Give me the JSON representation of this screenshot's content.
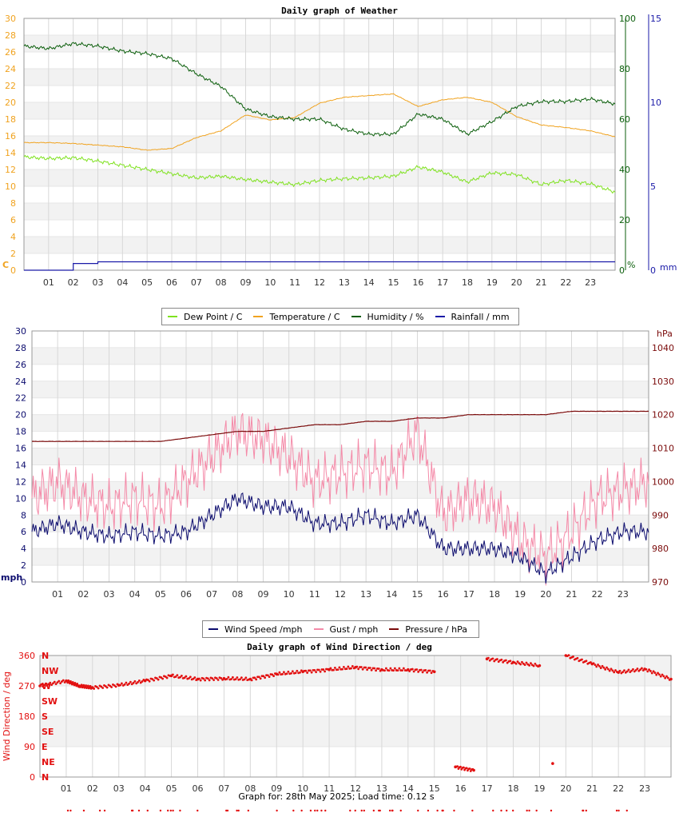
{
  "colors": {
    "dew_point": "#7fe21f",
    "temperature": "#f0a320",
    "humidity": "#0b5e0b",
    "rainfall": "#1a1aa8",
    "wind_speed": "#0c0c6e",
    "gust": "#f48aa8",
    "pressure": "#7a0a0a",
    "direction": "#e21010"
  },
  "hours": [
    "01",
    "02",
    "03",
    "04",
    "05",
    "06",
    "07",
    "08",
    "09",
    "10",
    "11",
    "12",
    "13",
    "14",
    "15",
    "16",
    "17",
    "18",
    "19",
    "20",
    "21",
    "22",
    "23"
  ],
  "chart_data": [
    {
      "type": "line",
      "title": "Daily graph of Weather",
      "x": [
        0,
        1,
        2,
        3,
        4,
        5,
        6,
        7,
        8,
        9,
        10,
        11,
        12,
        13,
        14,
        15,
        16,
        17,
        18,
        19,
        20,
        21,
        22,
        23,
        24
      ],
      "left_axis": {
        "unit_label": "C",
        "ticks": [
          "0",
          "2",
          "4",
          "6",
          "8",
          "10",
          "12",
          "14",
          "16",
          "18",
          "20",
          "22",
          "24",
          "26",
          "28",
          "30"
        ],
        "ylim": [
          0,
          30
        ]
      },
      "right_axis_1": {
        "unit_label": "%",
        "ticks": [
          "0",
          "20",
          "40",
          "60",
          "80",
          "100"
        ],
        "ylim": [
          0,
          100
        ]
      },
      "right_axis_2": {
        "unit_label": "mm",
        "ticks": [
          "0",
          "5",
          "10",
          "15"
        ],
        "ylim": [
          0,
          15
        ]
      },
      "grid": true,
      "legend": "bottom",
      "series": [
        {
          "name": "Dew Point / C",
          "axis": "left",
          "values": [
            13.5,
            13.3,
            13.4,
            13.0,
            12.5,
            12.0,
            11.5,
            11.0,
            11.2,
            10.8,
            10.5,
            10.2,
            10.7,
            10.9,
            11.0,
            11.2,
            12.3,
            11.7,
            10.5,
            11.6,
            11.4,
            10.2,
            10.7,
            10.3,
            9.3
          ]
        },
        {
          "name": "Temperature / C",
          "axis": "left",
          "values": [
            15.2,
            15.2,
            15.1,
            14.9,
            14.7,
            14.3,
            14.5,
            15.8,
            16.6,
            18.5,
            17.9,
            18.2,
            19.9,
            20.6,
            20.8,
            21.0,
            19.5,
            20.3,
            20.6,
            20.0,
            18.3,
            17.3,
            17.0,
            16.6,
            15.9
          ]
        },
        {
          "name": "Humidity / %",
          "axis": "right_1",
          "values": [
            89,
            88,
            90,
            89,
            87,
            86,
            84,
            78,
            73,
            64,
            61,
            60,
            60,
            56,
            54,
            54,
            62,
            60,
            54,
            59,
            65,
            67,
            67,
            68,
            66
          ]
        },
        {
          "name": "Rainfall / mm",
          "axis": "right_2",
          "values": [
            0,
            0,
            0.4,
            0.5,
            0.5,
            0.5,
            0.5,
            0.5,
            0.5,
            0.5,
            0.5,
            0.5,
            0.5,
            0.5,
            0.5,
            0.5,
            0.5,
            0.5,
            0.5,
            0.5,
            0.5,
            0.5,
            0.5,
            0.5,
            0.5
          ]
        }
      ]
    },
    {
      "type": "line",
      "title": "",
      "x": [
        0,
        1,
        2,
        3,
        4,
        5,
        6,
        7,
        8,
        9,
        10,
        11,
        12,
        13,
        14,
        15,
        16,
        17,
        18,
        19,
        20,
        21,
        22,
        23,
        24
      ],
      "left_axis": {
        "unit_label": "mph",
        "ticks": [
          "0",
          "2",
          "4",
          "6",
          "8",
          "10",
          "12",
          "14",
          "16",
          "18",
          "20",
          "22",
          "24",
          "26",
          "28",
          "30"
        ],
        "ylim": [
          0,
          30
        ]
      },
      "right_axis": {
        "unit_label": "hPa",
        "ticks": [
          "970",
          "980",
          "990",
          "1000",
          "1010",
          "1020",
          "1030",
          "1040"
        ],
        "ylim": [
          970,
          1045
        ]
      },
      "grid": true,
      "legend": "bottom",
      "series": [
        {
          "name": "Wind Speed /mph",
          "axis": "left",
          "values": [
            6,
            7,
            6,
            5.5,
            6,
            5.5,
            6,
            8,
            10,
            9,
            9,
            7,
            7,
            8,
            7,
            8,
            4,
            4,
            4,
            3,
            1,
            3,
            5,
            6,
            6
          ]
        },
        {
          "name": "Gust / mph",
          "axis": "left",
          "values": [
            10,
            12,
            10,
            9,
            10,
            9,
            12,
            15,
            18,
            17,
            15,
            12,
            13,
            14,
            13,
            18,
            8,
            10,
            9,
            5,
            3,
            6,
            10,
            11,
            12
          ]
        },
        {
          "name": "Pressure / hPa",
          "axis": "right",
          "values": [
            1012,
            1012,
            1012,
            1012,
            1012,
            1012,
            1013,
            1014,
            1015,
            1015,
            1016,
            1017,
            1017,
            1018,
            1018,
            1019,
            1019,
            1020,
            1020,
            1020,
            1020,
            1021,
            1021,
            1021,
            1021
          ]
        }
      ]
    },
    {
      "type": "scatter",
      "title": "Daily graph of Wind Direction / deg",
      "ylabel": "Wind Direction / deg",
      "y_ticks": [
        "0",
        "90",
        "180",
        "270",
        "360"
      ],
      "compass_labels": [
        "N",
        "NE",
        "E",
        "SE",
        "S",
        "SW",
        "W",
        "NW",
        "N"
      ],
      "ylim": [
        0,
        360
      ],
      "grid": true,
      "series": [
        {
          "name": "Wind Direction",
          "points": [
            [
              0,
              270
            ],
            [
              1,
              285
            ],
            [
              1.5,
              270
            ],
            [
              2,
              265
            ],
            [
              3,
              272
            ],
            [
              4,
              285
            ],
            [
              5,
              300
            ],
            [
              6,
              290
            ],
            [
              7,
              292
            ],
            [
              8,
              290
            ],
            [
              9,
              305
            ],
            [
              10,
              312
            ],
            [
              11,
              318
            ],
            [
              12,
              325
            ],
            [
              13,
              318
            ],
            [
              14,
              318
            ],
            [
              15,
              312
            ],
            [
              15.8,
              30
            ],
            [
              16.5,
              20
            ],
            [
              17,
              350
            ],
            [
              18,
              340
            ],
            [
              19,
              330
            ],
            [
              19.5,
              40
            ],
            [
              20,
              360
            ],
            [
              21,
              335
            ],
            [
              22,
              310
            ],
            [
              23,
              320
            ],
            [
              24,
              290
            ]
          ]
        }
      ]
    }
  ],
  "legend1": {
    "dew_point": "Dew Point / C",
    "temperature": "Temperature / C",
    "humidity": "Humidity / %",
    "rainfall": "Rainfall / mm"
  },
  "legend2": {
    "wind_speed": "Wind Speed /mph",
    "gust": "Gust / mph",
    "pressure": "Pressure / hPa"
  },
  "footer": "Graph for: 28th May 2025; Load time: 0.12 s"
}
